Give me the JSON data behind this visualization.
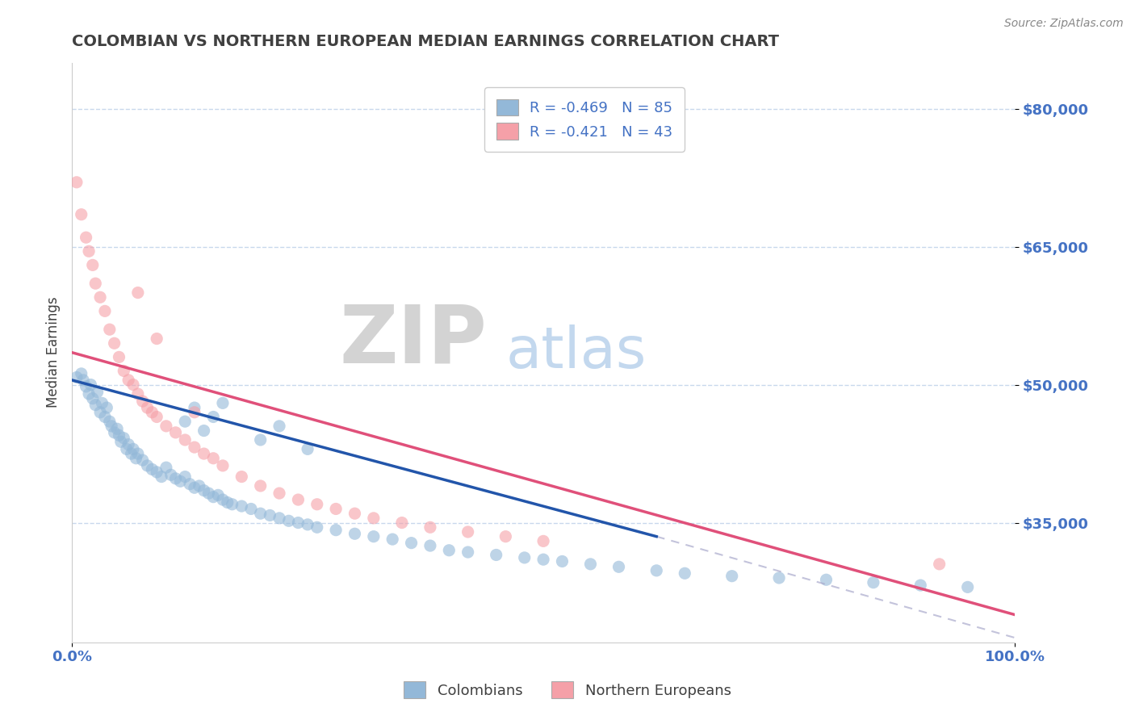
{
  "title": "COLOMBIAN VS NORTHERN EUROPEAN MEDIAN EARNINGS CORRELATION CHART",
  "source_text": "Source: ZipAtlas.com",
  "ylabel": "Median Earnings",
  "watermark_zip": "ZIP",
  "watermark_atlas": "atlas",
  "xlim": [
    0,
    1.0
  ],
  "ylim": [
    22000,
    85000
  ],
  "yticks": [
    35000,
    50000,
    65000,
    80000
  ],
  "ytick_labels": [
    "$35,000",
    "$50,000",
    "$65,000",
    "$80,000"
  ],
  "xticks": [
    0.0,
    1.0
  ],
  "xtick_labels": [
    "0.0%",
    "100.0%"
  ],
  "blue_color": "#93b8d8",
  "pink_color": "#f5a0a8",
  "blue_line_color": "#2255aa",
  "pink_line_color": "#e0507a",
  "legend_r1": "R = -0.469   N = 85",
  "legend_r2": "R = -0.421   N = 43",
  "legend_label1": "Colombians",
  "legend_label2": "Northern Europeans",
  "blue_line_x0": 0.0,
  "blue_line_y0": 50500,
  "blue_line_x1": 0.62,
  "blue_line_y1": 33500,
  "pink_line_x0": 0.0,
  "pink_line_y0": 53500,
  "pink_line_x1": 1.0,
  "pink_line_y1": 25000,
  "dash_line_x0": 0.62,
  "dash_line_y0": 33500,
  "dash_line_x1": 1.0,
  "dash_line_y1": 22500,
  "title_color": "#404040",
  "tick_color": "#4472c4",
  "grid_color": "#c8d8ec",
  "background_color": "#ffffff",
  "blue_scatter_x": [
    0.005,
    0.01,
    0.012,
    0.015,
    0.018,
    0.02,
    0.022,
    0.025,
    0.027,
    0.03,
    0.032,
    0.035,
    0.037,
    0.04,
    0.042,
    0.045,
    0.048,
    0.05,
    0.052,
    0.055,
    0.058,
    0.06,
    0.063,
    0.065,
    0.068,
    0.07,
    0.075,
    0.08,
    0.085,
    0.09,
    0.095,
    0.1,
    0.105,
    0.11,
    0.115,
    0.12,
    0.125,
    0.13,
    0.135,
    0.14,
    0.145,
    0.15,
    0.155,
    0.16,
    0.165,
    0.17,
    0.18,
    0.19,
    0.2,
    0.21,
    0.22,
    0.23,
    0.24,
    0.25,
    0.26,
    0.28,
    0.3,
    0.32,
    0.34,
    0.36,
    0.38,
    0.4,
    0.42,
    0.45,
    0.48,
    0.5,
    0.52,
    0.55,
    0.58,
    0.62,
    0.65,
    0.7,
    0.75,
    0.8,
    0.85,
    0.9,
    0.95,
    0.12,
    0.13,
    0.14,
    0.15,
    0.16,
    0.2,
    0.22,
    0.25
  ],
  "blue_scatter_y": [
    50800,
    51200,
    50500,
    49800,
    49000,
    50000,
    48500,
    47800,
    49200,
    47000,
    48000,
    46500,
    47500,
    46000,
    45500,
    44800,
    45200,
    44500,
    43800,
    44200,
    43000,
    43500,
    42500,
    43000,
    42000,
    42500,
    41800,
    41200,
    40800,
    40500,
    40000,
    41000,
    40200,
    39800,
    39500,
    40000,
    39200,
    38800,
    39000,
    38500,
    38200,
    37800,
    38000,
    37500,
    37200,
    37000,
    36800,
    36500,
    36000,
    35800,
    35500,
    35200,
    35000,
    34800,
    34500,
    34200,
    33800,
    33500,
    33200,
    32800,
    32500,
    32000,
    31800,
    31500,
    31200,
    31000,
    30800,
    30500,
    30200,
    29800,
    29500,
    29200,
    29000,
    28800,
    28500,
    28200,
    28000,
    46000,
    47500,
    45000,
    46500,
    48000,
    44000,
    45500,
    43000
  ],
  "pink_scatter_x": [
    0.005,
    0.01,
    0.015,
    0.018,
    0.022,
    0.025,
    0.03,
    0.035,
    0.04,
    0.045,
    0.05,
    0.055,
    0.06,
    0.065,
    0.07,
    0.075,
    0.08,
    0.085,
    0.09,
    0.1,
    0.11,
    0.12,
    0.13,
    0.14,
    0.15,
    0.16,
    0.18,
    0.2,
    0.22,
    0.24,
    0.26,
    0.28,
    0.3,
    0.32,
    0.35,
    0.38,
    0.42,
    0.46,
    0.5,
    0.92,
    0.07,
    0.09,
    0.13
  ],
  "pink_scatter_y": [
    72000,
    68500,
    66000,
    64500,
    63000,
    61000,
    59500,
    58000,
    56000,
    54500,
    53000,
    51500,
    50500,
    50000,
    49000,
    48200,
    47500,
    47000,
    46500,
    45500,
    44800,
    44000,
    43200,
    42500,
    42000,
    41200,
    40000,
    39000,
    38200,
    37500,
    37000,
    36500,
    36000,
    35500,
    35000,
    34500,
    34000,
    33500,
    33000,
    30500,
    60000,
    55000,
    47000
  ]
}
